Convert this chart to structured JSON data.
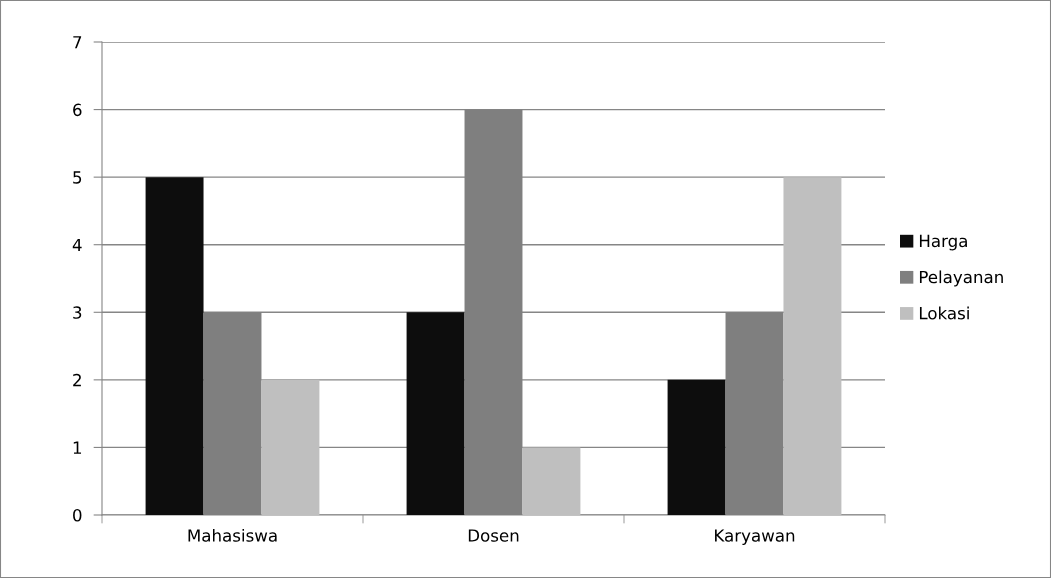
{
  "chart_data": {
    "type": "bar",
    "categories": [
      "Mahasiswa",
      "Dosen",
      "Karyawan"
    ],
    "series": [
      {
        "name": "Harga",
        "color": "#0d0d0d",
        "values": [
          5,
          3,
          2
        ]
      },
      {
        "name": "Pelayanan",
        "color": "#7f7f7f",
        "values": [
          3,
          6,
          3
        ]
      },
      {
        "name": "Lokasi",
        "color": "#bfbfbf",
        "values": [
          2,
          1,
          5
        ]
      }
    ],
    "ylim": [
      0,
      7
    ],
    "yticks": [
      0,
      1,
      2,
      3,
      4,
      5,
      6,
      7
    ],
    "grid": "y",
    "legend": "right"
  }
}
